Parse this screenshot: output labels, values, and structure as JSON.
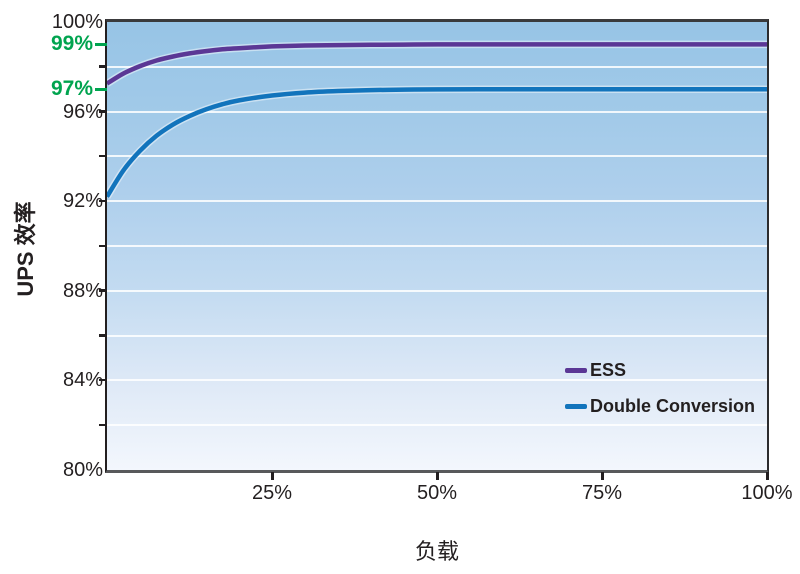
{
  "chart_data": {
    "type": "line",
    "title": "",
    "xlabel": "负载",
    "ylabel": "UPS 效率",
    "xlim": [
      0,
      100
    ],
    "ylim": [
      80,
      100
    ],
    "grid": "horizontal",
    "gridline_values": [
      98,
      96,
      94,
      92,
      90,
      88,
      86,
      84,
      82
    ],
    "x_ticks": [
      {
        "value": 25,
        "label": "25%"
      },
      {
        "value": 50,
        "label": "50%"
      },
      {
        "value": 75,
        "label": "75%"
      },
      {
        "value": 100,
        "label": "100%"
      }
    ],
    "y_ticks": [
      {
        "value": 100,
        "label": "100%",
        "style": "black",
        "tick": false
      },
      {
        "value": 99,
        "label": "99%",
        "style": "green",
        "tick": true
      },
      {
        "value": 98,
        "label": "",
        "style": "black",
        "tick": true
      },
      {
        "value": 97,
        "label": "97%",
        "style": "green",
        "tick": true
      },
      {
        "value": 96,
        "label": "96%",
        "style": "black",
        "tick": true
      },
      {
        "value": 94,
        "label": "",
        "style": "black",
        "tick": true
      },
      {
        "value": 92,
        "label": "92%",
        "style": "black",
        "tick": true
      },
      {
        "value": 90,
        "label": "",
        "style": "black",
        "tick": true
      },
      {
        "value": 88,
        "label": "88%",
        "style": "black",
        "tick": true
      },
      {
        "value": 86,
        "label": "",
        "style": "black",
        "tick": true
      },
      {
        "value": 84,
        "label": "84%",
        "style": "black",
        "tick": true
      },
      {
        "value": 82,
        "label": "",
        "style": "black",
        "tick": true
      },
      {
        "value": 80,
        "label": "80%",
        "style": "black",
        "tick": false
      }
    ],
    "series": [
      {
        "name": "ESS",
        "color": "#5b3795",
        "x": [
          0,
          2.5,
          5,
          7.5,
          10,
          12.5,
          15,
          17.5,
          20,
          25,
          30,
          35,
          40,
          45,
          50,
          60,
          70,
          80,
          90,
          100
        ],
        "y": [
          97.25,
          97.7,
          98.03,
          98.28,
          98.46,
          98.6,
          98.7,
          98.78,
          98.83,
          98.91,
          98.95,
          98.97,
          98.98,
          98.99,
          99,
          99,
          99,
          99,
          99,
          99
        ]
      },
      {
        "name": "Double Conversion",
        "color": "#1274bc",
        "x": [
          0,
          2.5,
          5,
          7.5,
          10,
          12.5,
          15,
          17.5,
          20,
          25,
          30,
          35,
          40,
          45,
          50,
          60,
          70,
          80,
          90,
          100
        ],
        "y": [
          92.2,
          93.38,
          94.25,
          94.92,
          95.42,
          95.8,
          96.1,
          96.33,
          96.5,
          96.72,
          96.85,
          96.92,
          96.96,
          96.98,
          96.99,
          97,
          97,
          97,
          97,
          97
        ]
      }
    ],
    "legend_position": "lower-right",
    "colors": {
      "green_label": "#00a44f",
      "text": "#231f20",
      "gridline": "#ffffff",
      "plot_bg_top": "#97c4e6",
      "plot_bg_bottom": "#f3f7fd"
    }
  }
}
